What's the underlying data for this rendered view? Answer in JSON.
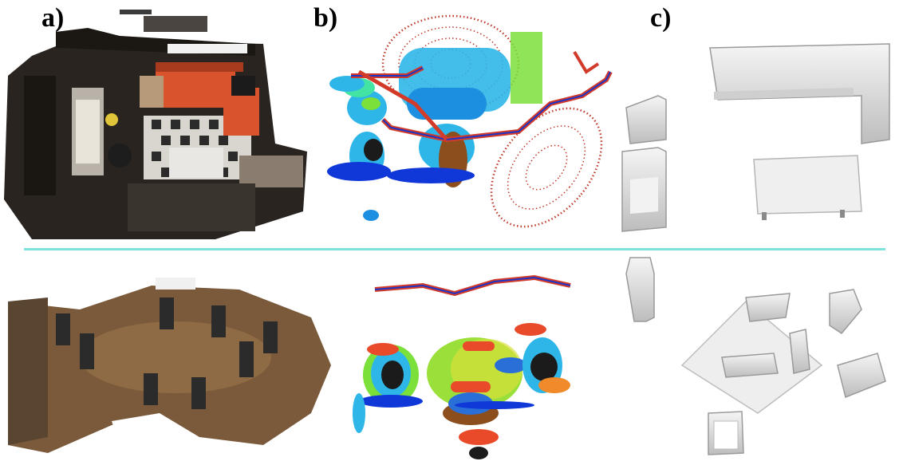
{
  "labels": {
    "a": "a)",
    "b": "b)",
    "c": "c)"
  },
  "colors": {
    "divider": "#7fe3dc",
    "sofa_orange": "#d9532c",
    "floor_brown": "#7a5a3a",
    "trajectory_red": "#d23b2a",
    "trajectory_blue": "#1a35c8",
    "ellipse_red": "#c0392b",
    "cloud_cyan": "#2fb6e8",
    "cloud_green": "#7be03a",
    "cloud_blue": "#1038d8",
    "cad_gray": "#dcdcdc"
  }
}
